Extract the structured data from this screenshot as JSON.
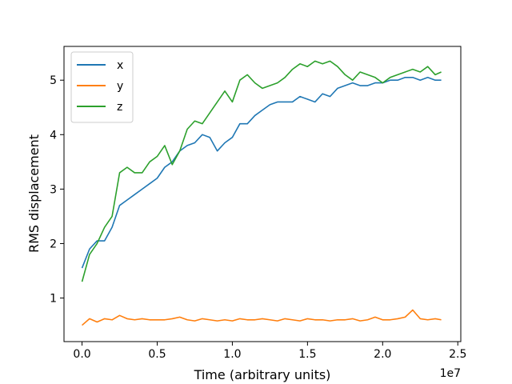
{
  "chart_data": {
    "type": "line",
    "title": "",
    "xlabel": "Time (arbitrary units)",
    "ylabel": "RMS displacement",
    "x_offset_label": "1e7",
    "xlim": [
      -1200000,
      25200000
    ],
    "ylim": [
      0.2,
      5.62
    ],
    "xticks": [
      {
        "value": 0,
        "label": "0.0"
      },
      {
        "value": 5000000,
        "label": "0.5"
      },
      {
        "value": 10000000,
        "label": "1.0"
      },
      {
        "value": 15000000,
        "label": "1.5"
      },
      {
        "value": 20000000,
        "label": "2.0"
      },
      {
        "value": 25000000,
        "label": "2.5"
      }
    ],
    "yticks": [
      {
        "value": 1,
        "label": "1"
      },
      {
        "value": 2,
        "label": "2"
      },
      {
        "value": 3,
        "label": "3"
      },
      {
        "value": 4,
        "label": "4"
      },
      {
        "value": 5,
        "label": "5"
      }
    ],
    "grid": false,
    "legend_position": "top-left",
    "x": [
      0,
      500000,
      1000000,
      1500000,
      2000000,
      2500000,
      3000000,
      3500000,
      4000000,
      4500000,
      5000000,
      5500000,
      6000000,
      6500000,
      7000000,
      7500000,
      8000000,
      8500000,
      9000000,
      9500000,
      10000000,
      10500000,
      11000000,
      11500000,
      12000000,
      12500000,
      13000000,
      13500000,
      14000000,
      14500000,
      15000000,
      15500000,
      16000000,
      16500000,
      17000000,
      17500000,
      18000000,
      18500000,
      19000000,
      19500000,
      20000000,
      20500000,
      21000000,
      21500000,
      22000000,
      22500000,
      23000000,
      23500000,
      23900000
    ],
    "series": [
      {
        "name": "x",
        "color": "#1f77b4",
        "values": [
          1.55,
          1.9,
          2.05,
          2.05,
          2.3,
          2.7,
          2.8,
          2.9,
          3.0,
          3.1,
          3.2,
          3.4,
          3.5,
          3.7,
          3.8,
          3.85,
          4.0,
          3.95,
          3.7,
          3.85,
          3.95,
          4.2,
          4.2,
          4.35,
          4.45,
          4.55,
          4.6,
          4.6,
          4.6,
          4.7,
          4.65,
          4.6,
          4.75,
          4.7,
          4.85,
          4.9,
          4.95,
          4.9,
          4.9,
          4.95,
          4.95,
          5.0,
          5.0,
          5.05,
          5.05,
          5.0,
          5.05,
          5.0,
          5.0
        ]
      },
      {
        "name": "y",
        "color": "#ff7f0e",
        "values": [
          0.5,
          0.62,
          0.56,
          0.62,
          0.6,
          0.68,
          0.62,
          0.6,
          0.62,
          0.6,
          0.6,
          0.6,
          0.62,
          0.65,
          0.6,
          0.58,
          0.62,
          0.6,
          0.58,
          0.6,
          0.58,
          0.62,
          0.6,
          0.6,
          0.62,
          0.6,
          0.58,
          0.62,
          0.6,
          0.58,
          0.62,
          0.6,
          0.6,
          0.58,
          0.6,
          0.6,
          0.62,
          0.58,
          0.6,
          0.65,
          0.6,
          0.6,
          0.62,
          0.65,
          0.78,
          0.62,
          0.6,
          0.62,
          0.6
        ]
      },
      {
        "name": "z",
        "color": "#2ca02c",
        "values": [
          1.3,
          1.8,
          2.0,
          2.3,
          2.5,
          3.3,
          3.4,
          3.3,
          3.3,
          3.5,
          3.6,
          3.8,
          3.45,
          3.7,
          4.1,
          4.25,
          4.2,
          4.4,
          4.6,
          4.8,
          4.6,
          5.0,
          5.1,
          4.95,
          4.85,
          4.9,
          4.95,
          5.05,
          5.2,
          5.3,
          5.25,
          5.35,
          5.3,
          5.35,
          5.25,
          5.1,
          5.0,
          5.15,
          5.1,
          5.05,
          4.95,
          5.05,
          5.1,
          5.15,
          5.2,
          5.15,
          5.25,
          5.1,
          5.15
        ]
      }
    ]
  }
}
